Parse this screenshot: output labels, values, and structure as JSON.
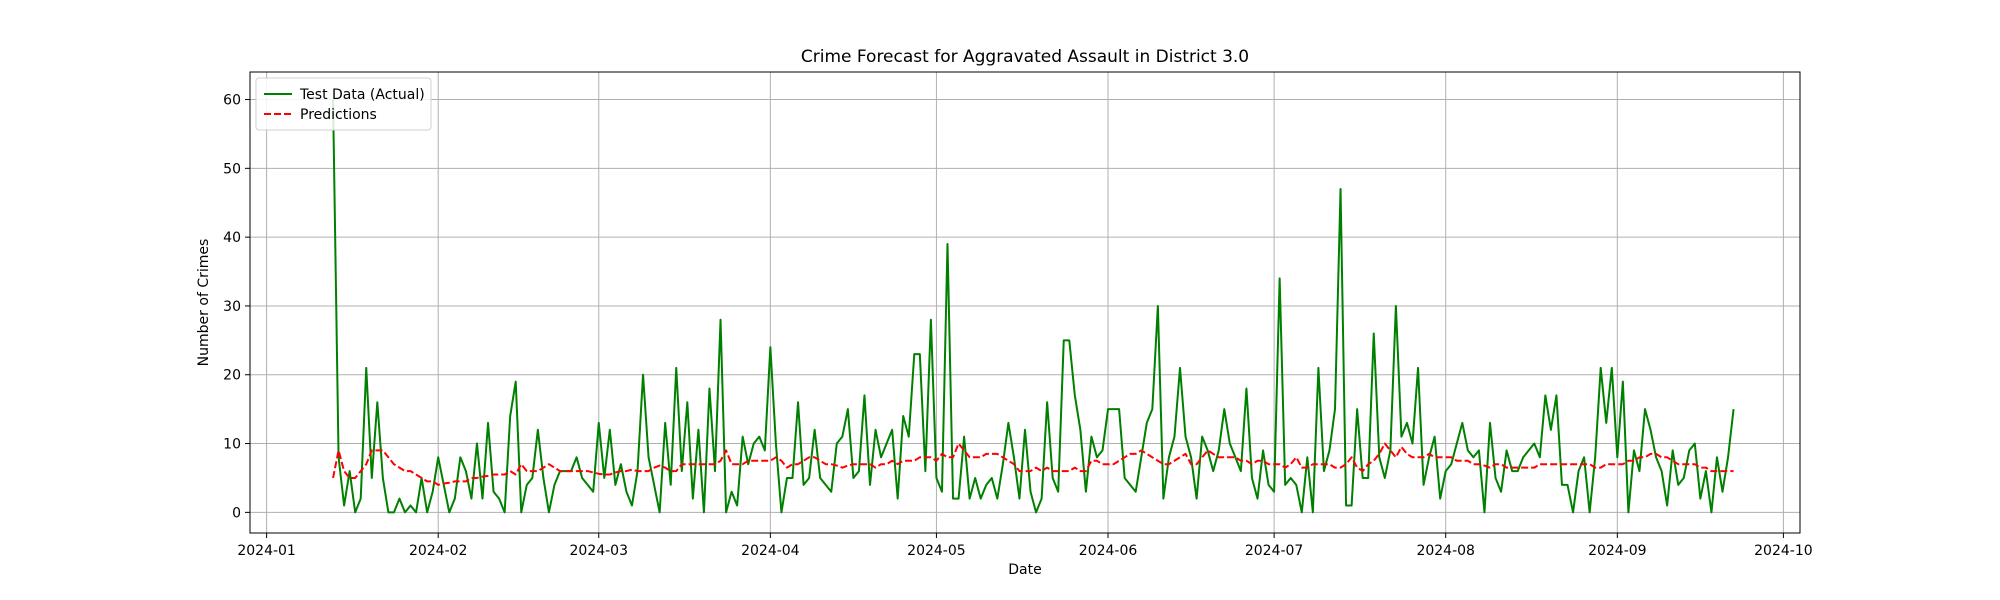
{
  "chart_data": {
    "type": "line",
    "title": "Crime Forecast for Aggravated Assault in District 3.0",
    "xlabel": "Date",
    "ylabel": "Number of Crimes",
    "x_start": "2024-01-13",
    "x_step_days": 1,
    "xlim": [
      "2023-12-29",
      "2024-10-04"
    ],
    "ylim": [
      -3,
      64
    ],
    "x_ticks": [
      "2024-01",
      "2024-02",
      "2024-03",
      "2024-04",
      "2024-05",
      "2024-06",
      "2024-07",
      "2024-08",
      "2024-09",
      "2024-10"
    ],
    "y_ticks": [
      0,
      10,
      20,
      30,
      40,
      50,
      60
    ],
    "grid": true,
    "legend": {
      "placement": "top-left"
    },
    "series": [
      {
        "name": "Test Data (Actual)",
        "color": "#008000",
        "style": "solid",
        "values": [
          60,
          8,
          1,
          6,
          0,
          2,
          21,
          5,
          16,
          5,
          0,
          0,
          2,
          0,
          1,
          0,
          5,
          0,
          3,
          8,
          4,
          0,
          2,
          8,
          6,
          2,
          10,
          2,
          13,
          3,
          2,
          0,
          14,
          19,
          0,
          4,
          5,
          12,
          5,
          0,
          4,
          6,
          6,
          6,
          8,
          5,
          4,
          3,
          13,
          5,
          12,
          4,
          7,
          3,
          1,
          6,
          20,
          8,
          4,
          0,
          13,
          4,
          21,
          6,
          16,
          2,
          12,
          0,
          18,
          6,
          28,
          0,
          3,
          1,
          11,
          7,
          10,
          11,
          9,
          24,
          10,
          0,
          5,
          5,
          16,
          4,
          5,
          12,
          5,
          4,
          3,
          10,
          11,
          15,
          5,
          6,
          17,
          4,
          12,
          8,
          10,
          12,
          2,
          14,
          11,
          23,
          23,
          6,
          28,
          5,
          3,
          39,
          2,
          2,
          11,
          2,
          5,
          2,
          4,
          5,
          2,
          7,
          13,
          8,
          2,
          12,
          3,
          0,
          2,
          16,
          5,
          3,
          25,
          25,
          17,
          12,
          3,
          11,
          8,
          9,
          15,
          15,
          15,
          5,
          4,
          3,
          8,
          13,
          15,
          30,
          2,
          8,
          11,
          21,
          11,
          8,
          2,
          11,
          9,
          6,
          9,
          15,
          10,
          8,
          6,
          18,
          5,
          2,
          9,
          4,
          3,
          34,
          4,
          5,
          4,
          0,
          8,
          0,
          21,
          6,
          9,
          15,
          47,
          1,
          1,
          15,
          5,
          5,
          26,
          8,
          5,
          9,
          30,
          11,
          13,
          10,
          21,
          4,
          8,
          11,
          2,
          6,
          7,
          10,
          13,
          9,
          8,
          9,
          0,
          13,
          5,
          3,
          9,
          6,
          6,
          8,
          9,
          10,
          8,
          17,
          12,
          17,
          4,
          4,
          0,
          6,
          8,
          0,
          8,
          21,
          13,
          21,
          8,
          19,
          0,
          9,
          6,
          15,
          12,
          8,
          6,
          1,
          9,
          4,
          5,
          9,
          10,
          2,
          6,
          0,
          8,
          3,
          8,
          15
        ]
      },
      {
        "name": "Predictions",
        "color": "#ff0000",
        "style": "dashed",
        "values": [
          5,
          9,
          6,
          5,
          5,
          6,
          7,
          9,
          9,
          9,
          8,
          7,
          6.5,
          6,
          6,
          5.5,
          5,
          4.5,
          4.5,
          4,
          4.2,
          4.3,
          4.5,
          4.5,
          4.5,
          5,
          5,
          5.2,
          5.3,
          5.5,
          5.5,
          5.5,
          6,
          5.5,
          7,
          6,
          6,
          6,
          6.5,
          7,
          6.5,
          6,
          6,
          6,
          6,
          6,
          6,
          5.8,
          5.6,
          5.5,
          5.5,
          5.8,
          6,
          6,
          6.2,
          6,
          6,
          6,
          6.5,
          6.8,
          6.5,
          6,
          6,
          7,
          7,
          7,
          7,
          7,
          7,
          7,
          7.5,
          9,
          7,
          7,
          7,
          7.5,
          7.5,
          7.5,
          7.5,
          7.5,
          8,
          7.5,
          6.5,
          7,
          7,
          7.5,
          8,
          8,
          7.5,
          7,
          7,
          6.8,
          6.5,
          6.8,
          7,
          7,
          7,
          7,
          6.5,
          7,
          7,
          7.5,
          7,
          7.5,
          7.5,
          7.5,
          8,
          8,
          8,
          7.5,
          8.5,
          8,
          8,
          10,
          9,
          8,
          8,
          8,
          8.5,
          8.5,
          8.5,
          8,
          7.5,
          7,
          6,
          6,
          6,
          6.5,
          6,
          6.5,
          6,
          6,
          6,
          6,
          6.5,
          6,
          6,
          7.5,
          7.5,
          7,
          7,
          7,
          7.5,
          8,
          8.5,
          8.5,
          9,
          8.5,
          8,
          7.5,
          7,
          7,
          7.5,
          8,
          8.5,
          7,
          7,
          8,
          9,
          8.5,
          8,
          8,
          8,
          8,
          7.5,
          7.5,
          7,
          7.5,
          7.5,
          7,
          7,
          7,
          6.5,
          7,
          8,
          6.5,
          6.5,
          7,
          7,
          7,
          7,
          6.5,
          6.5,
          7,
          8,
          6.5,
          6,
          7,
          7.5,
          8.5,
          10,
          9,
          8,
          9.5,
          8.5,
          8,
          8,
          8,
          8.5,
          8,
          8,
          8,
          8,
          7.5,
          7.5,
          7.5,
          7,
          7,
          6.8,
          6.5,
          7,
          7,
          6.5,
          6.5,
          6.5,
          6.5,
          6.5,
          6.5,
          7,
          7,
          7,
          7,
          7,
          7,
          7,
          7,
          7,
          7,
          6.5,
          6.5,
          7,
          7,
          7,
          7,
          7.5,
          7.5,
          8,
          8,
          8.5,
          8.5,
          8,
          8,
          7.5,
          7,
          7,
          7,
          7,
          6.5,
          6.5,
          6,
          6,
          6,
          6,
          6
        ]
      }
    ]
  }
}
